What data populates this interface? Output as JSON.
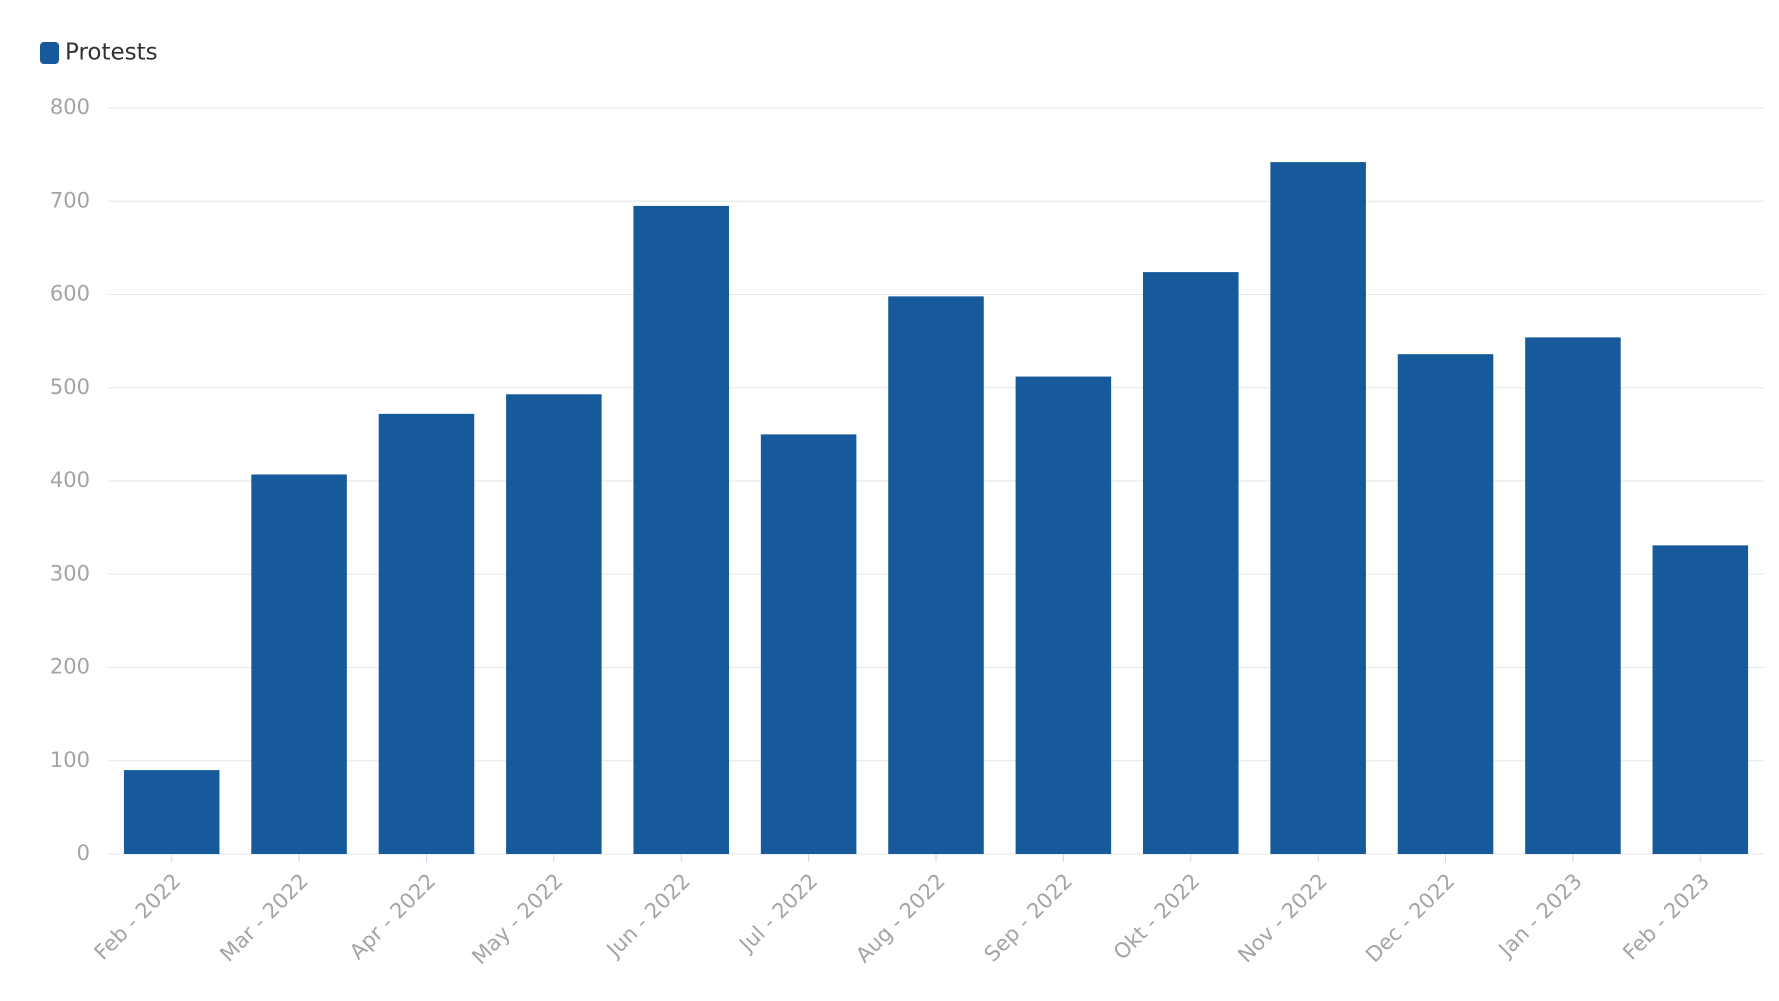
{
  "chart_data": {
    "type": "bar",
    "categories": [
      "Feb - 2022",
      "Mar - 2022",
      "Apr - 2022",
      "May - 2022",
      "Jun - 2022",
      "Jul - 2022",
      "Aug - 2022",
      "Sep - 2022",
      "Okt - 2022",
      "Nov - 2022",
      "Dec - 2022",
      "Jan - 2023",
      "Feb - 2023"
    ],
    "series": [
      {
        "name": "Protests",
        "color": "#175a9c",
        "values": [
          90,
          407,
          472,
          493,
          695,
          450,
          598,
          512,
          624,
          742,
          536,
          554,
          331
        ]
      }
    ],
    "ylim": [
      0,
      800
    ],
    "yticks": [
      0,
      100,
      200,
      300,
      400,
      500,
      600,
      700,
      800
    ],
    "grid": true,
    "legend": "top-left"
  }
}
